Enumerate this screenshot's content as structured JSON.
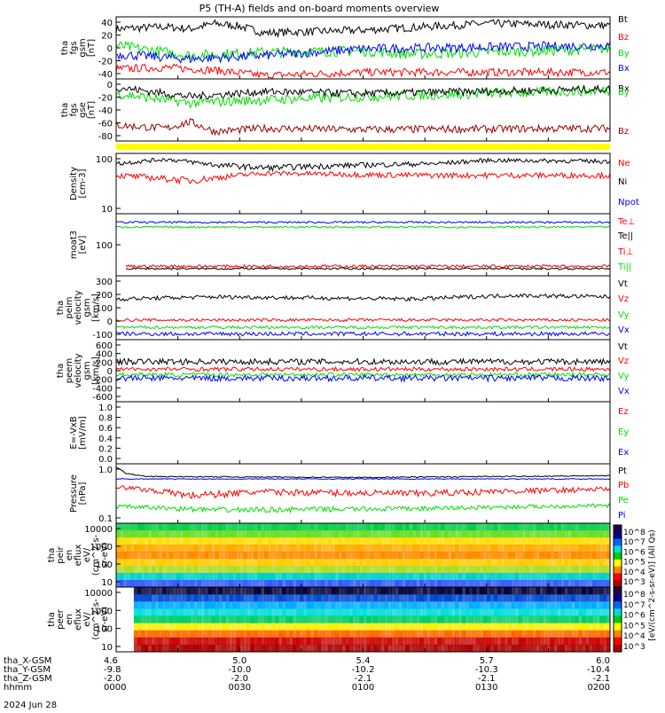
{
  "title": "P5 (TH-A) fields and on-board moments overview",
  "date": "2024 Jun 28",
  "ephemeris": {
    "row_labels": [
      "tha_X-GSM",
      "tha_Y-GSM",
      "tha_Z-GSM",
      "hhmm"
    ],
    "columns": [
      [
        "4.6",
        "-9.8",
        "-2.0",
        "0000"
      ],
      [
        "5.0",
        "-10.0",
        "-2.0",
        "0030"
      ],
      [
        "5.4",
        "-10.2",
        "-2.1",
        "0100"
      ],
      [
        "5.7",
        "-10.3",
        "-2.1",
        "0130"
      ],
      [
        "6.0",
        "-10.4",
        "-2.1",
        "0200"
      ]
    ]
  },
  "colorbar_label": "[eV/(cm^2-s-sr-eV)] (All Qs)",
  "colorbar_ticks": [
    "10^8",
    "10^7",
    "10^6",
    "10^5",
    "10^4",
    "10^3"
  ],
  "colors": {
    "black": "#000000",
    "red": "#ff0000",
    "green": "#00dd00",
    "blue": "#0000ff",
    "darkred": "#990000",
    "yellow": "#ffff00"
  },
  "chart_data": [
    {
      "type": "line",
      "panel": "fgs-gsm",
      "ylabel": [
        "tha",
        "fgs",
        "gsm",
        "[nT]"
      ],
      "yticks": [
        "40",
        "20",
        "0",
        "-20",
        "-40"
      ],
      "ylim": [
        -45,
        48
      ],
      "legend": [
        "Bt",
        "Bz",
        "By",
        "Bx"
      ],
      "series": [
        {
          "name": "Bt",
          "color": "#000000",
          "baseline": 34,
          "noise": 6,
          "x": [
            0,
            0.1,
            0.15,
            0.2,
            0.25,
            0.3,
            0.5,
            0.75,
            1.0
          ],
          "values": [
            30,
            33,
            30,
            38,
            34,
            24,
            28,
            38,
            35
          ]
        },
        {
          "name": "Bz",
          "color": "#ff0000",
          "baseline": -28,
          "noise": 6,
          "x": [
            0,
            0.1,
            0.15,
            0.2,
            0.3,
            0.5,
            1.0
          ],
          "values": [
            -30,
            -28,
            -30,
            -32,
            -40,
            -35,
            -35
          ]
        },
        {
          "name": "By",
          "color": "#00dd00",
          "baseline": -5,
          "noise": 8,
          "x": [
            0,
            0.15,
            0.3,
            0.5,
            0.6,
            1.0
          ],
          "values": [
            5,
            -10,
            -5,
            -3,
            -8,
            0
          ]
        },
        {
          "name": "Bx",
          "color": "#0000ff",
          "baseline": 0,
          "noise": 7,
          "x": [
            0,
            0.15,
            0.3,
            0.5,
            1.0
          ],
          "values": [
            -8,
            -15,
            -10,
            0,
            5
          ]
        }
      ]
    },
    {
      "type": "line",
      "panel": "fgs-gse",
      "ylabel": [
        "tha",
        "fgs",
        "gse",
        "[nT]"
      ],
      "yticks": [
        "0",
        "-20",
        "-40",
        "-60",
        "-80"
      ],
      "ylim": [
        -90,
        8
      ],
      "legend": [
        "Bx",
        "By",
        "Bz"
      ],
      "series": [
        {
          "name": "Bz",
          "color": "#990000",
          "baseline": -70,
          "noise": 6,
          "x": [
            0,
            0.1,
            0.15,
            0.2,
            0.3,
            0.5,
            1.0
          ],
          "values": [
            -65,
            -70,
            -60,
            -75,
            -70,
            -72,
            -70
          ]
        },
        {
          "name": "By",
          "color": "#00dd00",
          "baseline": -20,
          "noise": 8,
          "x": [
            0,
            0.15,
            0.3,
            0.5,
            1.0
          ],
          "values": [
            -15,
            -30,
            -25,
            -20,
            -10
          ]
        },
        {
          "name": "Bx",
          "color": "#000000",
          "baseline": -10,
          "noise": 6,
          "x": [
            0,
            0.15,
            0.3,
            0.5,
            1.0
          ],
          "values": [
            -5,
            -20,
            -12,
            -15,
            -8
          ]
        }
      ]
    },
    {
      "type": "line",
      "panel": "density",
      "ylabel": [
        "Density",
        "[cm-3]"
      ],
      "yticks": [
        "100",
        "10"
      ],
      "ylim": [
        5,
        130
      ],
      "legend": [
        "Ne",
        "Ni",
        "Npot"
      ],
      "series": [
        {
          "name": "Ni",
          "color": "#000000",
          "baseline": 80,
          "noise": 10,
          "x": [
            0,
            0.1,
            0.2,
            0.3,
            0.5,
            0.65,
            0.75,
            1.0
          ],
          "values": [
            75,
            95,
            70,
            60,
            70,
            75,
            90,
            85
          ]
        },
        {
          "name": "Ne",
          "color": "#ff0000",
          "baseline": 45,
          "noise": 6,
          "x": [
            0,
            0.15,
            0.3,
            0.6,
            1.0
          ],
          "values": [
            40,
            30,
            45,
            40,
            40
          ]
        }
      ]
    },
    {
      "type": "line",
      "panel": "temperature",
      "ylabel": [
        "moat3",
        "[eV]"
      ],
      "yticks": [
        "100"
      ],
      "ylim": [
        0,
        130
      ],
      "legend": [
        "Te⊥",
        "Te||",
        "Ti⊥",
        "Ti||"
      ],
      "series": [
        {
          "name": "Ti⊥",
          "color": "#0000ff",
          "baseline": 112,
          "noise": 2,
          "x": [
            0,
            1.0
          ],
          "values": [
            112,
            112
          ]
        },
        {
          "name": "Ti||",
          "color": "#00dd00",
          "baseline": 102,
          "noise": 2,
          "x": [
            0,
            1.0
          ],
          "values": [
            102,
            102
          ]
        },
        {
          "name": "Te⊥",
          "color": "#ff0000",
          "baseline": 20,
          "noise": 3,
          "x": [
            0.02,
            1.0
          ],
          "values": [
            20,
            20
          ]
        },
        {
          "name": "Te||",
          "color": "#000000",
          "baseline": 15,
          "noise": 2,
          "x": [
            0.02,
            1.0
          ],
          "values": [
            15,
            15
          ]
        }
      ]
    },
    {
      "type": "line",
      "panel": "peim-velocity",
      "ylabel": [
        "tha",
        "peim",
        "velocity",
        "gsm",
        "[km/s]"
      ],
      "yticks": [
        "300",
        "200",
        "100",
        "0",
        "-100"
      ],
      "ylim": [
        -130,
        310
      ],
      "legend": [
        "Vt",
        "Vz",
        "Vy",
        "Vx"
      ],
      "series": [
        {
          "name": "Vt",
          "color": "#000000",
          "baseline": 160,
          "noise": 14,
          "x": [
            0,
            0.2,
            0.6,
            0.8,
            1.0
          ],
          "values": [
            150,
            165,
            150,
            175,
            165
          ]
        },
        {
          "name": "Vz",
          "color": "#ff0000",
          "baseline": 5,
          "noise": 10,
          "x": [
            0,
            1.0
          ],
          "values": [
            5,
            5
          ]
        },
        {
          "name": "Vy",
          "color": "#00dd00",
          "baseline": -45,
          "noise": 10,
          "x": [
            0,
            1.0
          ],
          "values": [
            -45,
            -45
          ]
        },
        {
          "name": "Vx",
          "color": "#0000ff",
          "baseline": -90,
          "noise": 14,
          "x": [
            0,
            1.0
          ],
          "values": [
            -90,
            -90
          ]
        }
      ]
    },
    {
      "type": "line",
      "panel": "peem-velocity",
      "ylabel": [
        "tha",
        "peem",
        "velocity",
        "gsm",
        "[km/s]"
      ],
      "yticks": [
        "600",
        "400",
        "200",
        "0",
        "-200",
        "-400",
        "-600"
      ],
      "ylim": [
        -620,
        620
      ],
      "legend": [
        "Vt",
        "Vz",
        "Vy",
        "Vx"
      ],
      "series": [
        {
          "name": "Vt",
          "color": "#000000",
          "baseline": 180,
          "noise": 60,
          "x": [
            0,
            1.0
          ],
          "values": [
            180,
            180
          ]
        },
        {
          "name": "Vz",
          "color": "#ff0000",
          "baseline": 30,
          "noise": 40,
          "x": [
            0,
            1.0
          ],
          "values": [
            30,
            30
          ]
        },
        {
          "name": "Vy",
          "color": "#00dd00",
          "baseline": -80,
          "noise": 40,
          "x": [
            0,
            1.0
          ],
          "values": [
            -80,
            -80
          ]
        },
        {
          "name": "Vx",
          "color": "#0000ff",
          "baseline": -150,
          "noise": 60,
          "x": [
            0,
            1.0
          ],
          "values": [
            -150,
            -150
          ]
        }
      ]
    },
    {
      "type": "line",
      "panel": "efield",
      "ylabel": [
        "E=-VxB",
        "[mV/m]"
      ],
      "yticks": [
        "1.0",
        "0.8",
        "0.6",
        "0.4",
        "0.2",
        "0.0"
      ],
      "ylim": [
        0,
        1.0
      ],
      "legend": [
        "Ez",
        "Ey",
        "Ex"
      ],
      "series": []
    },
    {
      "type": "line",
      "panel": "pressure",
      "ylabel": [
        "Pressure",
        "[nPa]"
      ],
      "yticks": [
        "1.0",
        "0.1"
      ],
      "ylim": [
        0.03,
        4.0
      ],
      "legend": [
        "Pt",
        "Pb",
        "Pe",
        "Pi"
      ],
      "series": [
        {
          "name": "Pt",
          "color": "#000000",
          "baseline": 1.4,
          "noise": 0.06,
          "x": [
            0,
            0.02,
            0.06,
            0.5,
            1.0
          ],
          "values": [
            3.0,
            1.8,
            1.4,
            1.3,
            1.5
          ]
        },
        {
          "name": "Pi",
          "color": "#0000ff",
          "baseline": 1.15,
          "noise": 0.04,
          "x": [
            0,
            1.0
          ],
          "values": [
            1.15,
            1.15
          ]
        },
        {
          "name": "Pb",
          "color": "#ff0000",
          "baseline": 0.45,
          "noise": 0.1,
          "x": [
            0,
            0.15,
            0.3,
            0.6,
            1.0
          ],
          "values": [
            0.6,
            0.3,
            0.4,
            0.35,
            0.5
          ]
        },
        {
          "name": "Pe",
          "color": "#00dd00",
          "baseline": 0.12,
          "noise": 0.02,
          "x": [
            0,
            0.2,
            0.6,
            1.0
          ],
          "values": [
            0.12,
            0.09,
            0.1,
            0.13
          ]
        }
      ]
    },
    {
      "type": "heatmap",
      "panel": "peir-eflux",
      "ylabel": [
        "tha",
        "peir",
        "en",
        "eflux",
        "eV/",
        "(cm^2-s-",
        "sr-eV)"
      ],
      "yticks": [
        "10000",
        "1000",
        "100",
        "10"
      ]
    },
    {
      "type": "heatmap",
      "panel": "peer-eflux",
      "ylabel": [
        "tha",
        "peer",
        "en",
        "eflux",
        "eV/",
        "(cm^2-s-",
        "sr-eV)"
      ],
      "yticks": [
        "10000",
        "1000",
        "100",
        "10"
      ]
    }
  ]
}
